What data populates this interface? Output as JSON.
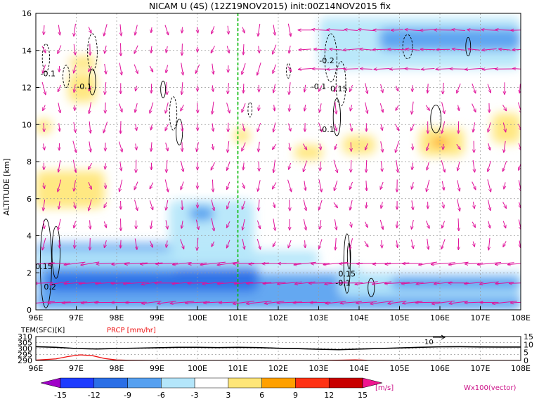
{
  "chart_data": [
    {
      "type": "heatmap",
      "title": "NICAM U (4S) (12Z19NOV2015) init:00Z14NOV2015 fix",
      "ylabel": "ALTITUDE [km]",
      "xlim": [
        96,
        108
      ],
      "ylim": [
        0,
        16
      ],
      "x_ticks": [
        96,
        97,
        98,
        99,
        100,
        101,
        102,
        103,
        104,
        105,
        106,
        107,
        108
      ],
      "x_tick_labels": [
        "96E",
        "97E",
        "98E",
        "99E",
        "100E",
        "101E",
        "102E",
        "103E",
        "104E",
        "105E",
        "106E",
        "107E",
        "108E"
      ],
      "y_ticks": [
        0,
        2,
        4,
        6,
        8,
        10,
        12,
        14,
        16
      ],
      "y_tick_labels": [
        "0",
        "2",
        "4",
        "6",
        "8",
        "10",
        "12",
        "14",
        "16"
      ],
      "grid": true,
      "marker_line_x": 101,
      "contour_labels": [
        {
          "text": "-0.1",
          "x": 96.3,
          "y": 12.6
        },
        {
          "text": "-0.1",
          "x": 97.2,
          "y": 11.9
        },
        {
          "text": "-0.2",
          "x": 103.2,
          "y": 13.3
        },
        {
          "text": "-0.1",
          "x": 103.0,
          "y": 11.9
        },
        {
          "text": "0.15",
          "x": 103.5,
          "y": 11.8
        },
        {
          "text": "-0.1",
          "x": 103.2,
          "y": 9.6
        },
        {
          "text": "0.15",
          "x": 96.2,
          "y": 2.2
        },
        {
          "text": "0.2",
          "x": 96.35,
          "y": 1.1
        },
        {
          "text": "0.15",
          "x": 103.7,
          "y": 1.8
        },
        {
          "text": "-0.1",
          "x": 103.6,
          "y": 1.3
        }
      ],
      "fields": [
        {
          "x0": 96.0,
          "x1": 108.0,
          "y0": 0.0,
          "y1": 1.0,
          "value": -9
        },
        {
          "x0": 96.0,
          "x1": 108.0,
          "y0": 1.0,
          "y1": 2.0,
          "value": -9
        },
        {
          "x0": 96.3,
          "x1": 101.5,
          "y0": 1.0,
          "y1": 2.5,
          "value": -12
        },
        {
          "x0": 96.0,
          "x1": 99.5,
          "y0": 2.0,
          "y1": 3.6,
          "value": -9
        },
        {
          "x0": 96.0,
          "x1": 103.0,
          "y0": 2.3,
          "y1": 3.2,
          "value": -6
        },
        {
          "x0": 99.3,
          "x1": 101.4,
          "y0": 2.8,
          "y1": 5.9,
          "value": -6
        },
        {
          "x0": 99.8,
          "x1": 100.4,
          "y0": 4.8,
          "y1": 5.6,
          "value": -9
        },
        {
          "x0": 98.8,
          "x1": 101.0,
          "y0": 6.8,
          "y1": 8.0,
          "value": -3
        },
        {
          "x0": 103.5,
          "x1": 108.0,
          "y0": 0.7,
          "y1": 2.4,
          "value": -6
        },
        {
          "x0": 104.8,
          "x1": 108.0,
          "y0": 1.1,
          "y1": 1.8,
          "value": -9
        },
        {
          "x0": 104.0,
          "x1": 108.0,
          "y0": 2.0,
          "y1": 3.1,
          "value": -3
        },
        {
          "x0": 102.5,
          "x1": 108.0,
          "y0": 12.0,
          "y1": 16.0,
          "value": -3
        },
        {
          "x0": 103.0,
          "x1": 108.0,
          "y0": 13.0,
          "y1": 15.8,
          "value": -6
        },
        {
          "x0": 104.5,
          "x1": 108.0,
          "y0": 14.0,
          "y1": 15.2,
          "value": -9
        },
        {
          "x0": 96.0,
          "x1": 97.0,
          "y0": 13.0,
          "y1": 15.0,
          "value": -3
        },
        {
          "x0": 97.5,
          "x1": 99.5,
          "y0": 14.0,
          "y1": 16.0,
          "value": -3
        },
        {
          "x0": 100.5,
          "x1": 102.0,
          "y0": 14.6,
          "y1": 16.0,
          "value": -3
        },
        {
          "x0": 96.0,
          "x1": 97.7,
          "y0": 5.5,
          "y1": 7.5,
          "value": 3
        },
        {
          "x0": 96.0,
          "x1": 96.4,
          "y0": 9.5,
          "y1": 10.3,
          "value": 3
        },
        {
          "x0": 96.8,
          "x1": 97.5,
          "y0": 11.2,
          "y1": 12.8,
          "value": 3
        },
        {
          "x0": 96.8,
          "x1": 97.5,
          "y0": 13.0,
          "y1": 13.7,
          "value": 3
        },
        {
          "x0": 100.9,
          "x1": 101.3,
          "y0": 9.0,
          "y1": 9.8,
          "value": 3
        },
        {
          "x0": 102.4,
          "x1": 103.1,
          "y0": 8.1,
          "y1": 8.9,
          "value": 3
        },
        {
          "x0": 103.6,
          "x1": 104.4,
          "y0": 8.4,
          "y1": 9.4,
          "value": 3
        },
        {
          "x0": 105.5,
          "x1": 106.6,
          "y0": 8.3,
          "y1": 9.8,
          "value": 3
        },
        {
          "x0": 107.3,
          "x1": 108.0,
          "y0": 9.0,
          "y1": 10.6,
          "value": 3
        },
        {
          "x0": 105.8,
          "x1": 106.2,
          "y0": 8.8,
          "y1": 9.3,
          "value": 6
        }
      ]
    },
    {
      "type": "line",
      "xlim": [
        96,
        108
      ],
      "x_tick_labels": [
        "96E",
        "97E",
        "98E",
        "99E",
        "100E",
        "101E",
        "102E",
        "103E",
        "104E",
        "105E",
        "106E",
        "107E",
        "108E"
      ],
      "left_label": "TEM(SFC)[K]",
      "left_ticks": [
        "310",
        "305",
        "300",
        "295",
        "290"
      ],
      "left_range": [
        290,
        310
      ],
      "right_label": "PRCP [mm/hr]",
      "right_ticks": [
        "15",
        "10",
        "5",
        "0"
      ],
      "right_range": [
        0,
        15
      ],
      "reference_label": "10",
      "series": [
        {
          "name": "TEM(SFC)[K]",
          "color": "#000000",
          "x": [
            96,
            96.5,
            97,
            97.5,
            98,
            98.5,
            99,
            99.5,
            100,
            100.5,
            101,
            101.5,
            102,
            102.5,
            103,
            103.5,
            104,
            104.5,
            105,
            105.5,
            106,
            106.5,
            107,
            107.5,
            108
          ],
          "y": [
            301.5,
            301.0,
            300.0,
            299.6,
            300.0,
            300.3,
            300.6,
            301.0,
            301.0,
            300.8,
            301.0,
            300.8,
            300.2,
            299.9,
            299.4,
            299.0,
            299.5,
            300.0,
            300.5,
            301.0,
            301.4,
            301.5,
            301.3,
            301.2,
            301.2
          ]
        },
        {
          "name": "PRCP [mm/hr]",
          "color": "#ee1111",
          "x": [
            96,
            96.5,
            96.8,
            97.1,
            97.4,
            97.7,
            98.0,
            98.3,
            99,
            100,
            101,
            102,
            103,
            103.6,
            103.9,
            104.2,
            105,
            106,
            107,
            108
          ],
          "y": [
            0.2,
            1.0,
            2.5,
            3.5,
            3.0,
            1.2,
            0.3,
            0.1,
            0,
            0,
            0,
            0,
            0,
            0.2,
            0.4,
            0.1,
            0,
            0,
            0,
            0
          ]
        }
      ]
    }
  ],
  "legend": {
    "colorbar_labels": [
      "-15",
      "-12",
      "-9",
      "-6",
      "-3",
      "3",
      "6",
      "9",
      "12",
      "15"
    ],
    "colorbar_colors": [
      "#a000c8",
      "#1e3cff",
      "#2b6fe6",
      "#56a0f0",
      "#b4e6fa",
      "#ffffff",
      "#ffe678",
      "#ffa000",
      "#ff3214",
      "#c80000",
      "#f01490"
    ],
    "unit": "[m/s]",
    "vector_label": "Wx100(vector)"
  },
  "colors": {
    "vector": "#e0119a",
    "marker_line": "#00bb00",
    "grid": "#999999",
    "prcp": "#ee1111"
  }
}
